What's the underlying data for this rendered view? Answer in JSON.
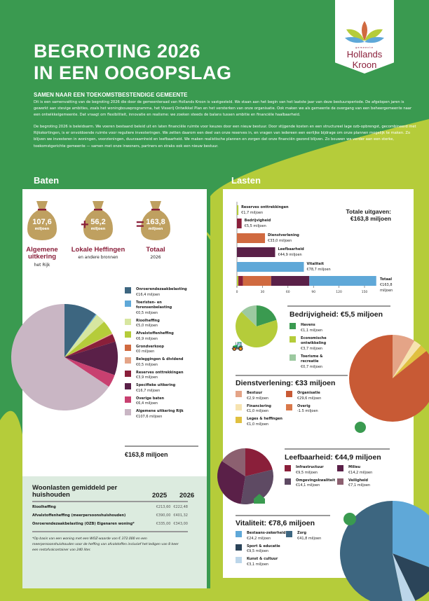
{
  "logo": {
    "small": "gemeente",
    "line1": "Hollands",
    "line2": "Kroon"
  },
  "title": [
    "BEGROTING 2026",
    "IN EEN OOGOPSLAG"
  ],
  "intro": {
    "heading": "SAMEN NAAR EEN TOEKOMSTBESTENDIGE GEMEENTE",
    "p1": "Dit is een samenvatting van de begroting 2026 die door de gemeenteraad van Hollands Kroon is vastgesteld. We staan aan het begin van het laatste jaar van deze bestuursperiode. De afgelopen jaren is gewerkt aan stevige ambities, zoals het woningbouwprogramma, het Visserij Ontwikkel Plan en het versterken van onze organisatie. Ook maken we als gemeente de overgang van een beheergemeente naar een ontwikkelgemeente. Dat vraagt om flexibiliteit, innovatie en realisme: we zoeken steeds de balans tussen ambitie en financiële haalbaarheid.",
    "p2": "De begroting 2026 is beleidsarm. We voeren bestaand beleid uit en laten financiële ruimte voor keuzes door een nieuw bestuur. Door stijgende kosten en een structureel lage ozb-opbrengst, gecombineerd met Rijkskortingen, is er onvoldoende ruimte voor reguliere investeringen. We zetten daarom een deel van onze reserves in, en vragen van iedereen een eerlijke bijdrage om onze plannen mogelijk te maken. Zo blijven we investeren in woningen, voorzieningen, duurzaamheid en leefbaarheid. We maken realistische plannen en zorgen dat onze financiën gezond blijven. Zo bouwen we verder aan een sterke, toekomstgerichte gemeente — samen met onze inwoners, partners en straks ook een nieuw bestuur."
  },
  "baten": {
    "heading": "Baten",
    "bags": [
      {
        "value": "107,6",
        "unit": "miljoen",
        "label": "Algemene uitkering",
        "sub": "het Rijk"
      },
      {
        "value": "56,2",
        "unit": "miljoen",
        "label": "Lokale Heffingen",
        "sub": "en andere bronnen"
      },
      {
        "value": "163,8",
        "unit": "miljoen",
        "label": "Totaal",
        "sub": "2026"
      }
    ],
    "plus": "+",
    "equals": "=",
    "total": "€163,8 miljoen"
  },
  "lasten": {
    "heading": "Lasten",
    "total_label": "Totale uitgaven:",
    "total_value": "€163,8 miljoen"
  },
  "woonlasten": {
    "title": "Woonlasten gemiddeld per huishouden",
    "years": [
      "2025",
      "2026"
    ],
    "rows": [
      [
        "Rioolheffing",
        "€213,60",
        "€222,48"
      ],
      [
        "Afvalstoffenheffing (meerpersoonshuishouden)",
        "€390,00",
        "€401,32"
      ],
      [
        "Onroerendezaakbelasting (OZB) Eigenaren woning*",
        "€335,00",
        "€343,00"
      ]
    ],
    "note": "*Op basis van een woning met een WOZ-waarde van € 372.000 en een meerpersoonshuishouden voor de heffing van afvalstoffen inclusief het ledigen van 8 keer een restafvalcontainer van 240 liter."
  },
  "chart_data": [
    {
      "type": "pie",
      "id": "baten",
      "slices": [
        {
          "label": "Onroerendezaakbelasting",
          "text": "€16,4 miljoen",
          "value": 16.4,
          "color": "#3d6680"
        },
        {
          "label": "Toeristen- en forensenbelasting",
          "text": "€0,5 miljoen",
          "value": 0.5,
          "color": "#5fa8d8"
        },
        {
          "label": "Rioolheffing",
          "text": "€5,0 miljoen",
          "value": 5.0,
          "color": "#d7e6a0"
        },
        {
          "label": "Afvalstoffenheffing",
          "text": "€6,9 miljoen",
          "value": 6.9,
          "color": "#b5cc3a"
        },
        {
          "label": "Grondverkoop",
          "text": "€0 miljoen",
          "value": 0,
          "color": "#d06a40"
        },
        {
          "label": "Beleggingen & dividend",
          "text": "€0,5 miljoen",
          "value": 0.5,
          "color": "#e4a487"
        },
        {
          "label": "Reserves onttrekkingen",
          "text": "€3,9 miljoen",
          "value": 3.9,
          "color": "#8a1f3a"
        },
        {
          "label": "Specifieke uitkering",
          "text": "€16,7 miljoen",
          "value": 16.7,
          "color": "#5a2048"
        },
        {
          "label": "Overige baten",
          "text": "€6,4 miljoen",
          "value": 6.4,
          "color": "#c84070"
        },
        {
          "label": "Algemene uitkering Rijk",
          "text": "€107,6 miljoen",
          "value": 107.6,
          "color": "#c9b6c4"
        }
      ]
    },
    {
      "type": "bar",
      "id": "lasten",
      "xlim": [
        0,
        165
      ],
      "xticks": [
        0,
        30,
        60,
        90,
        120,
        150
      ],
      "bars": [
        {
          "label": "Reserves onttrekkingen",
          "text": "€1,7 miljoen",
          "value": 1.7,
          "color": "#b5cc3a"
        },
        {
          "label": "Bedrijvigheid",
          "text": "€5,5 miljoen",
          "value": 5.5,
          "color": "#8a1f3a"
        },
        {
          "label": "Dienstverlening",
          "text": "€33,0 miljoen",
          "value": 33.0,
          "color": "#d06a40"
        },
        {
          "label": "Leefbaarheid",
          "text": "€44,9 miljoen",
          "value": 44.9,
          "color": "#5a2048"
        },
        {
          "label": "Vitaliteit",
          "text": "€78,7 miljoen",
          "value": 78.7,
          "color": "#5fa8d8"
        }
      ],
      "total": {
        "label": "Totaal",
        "text": "€163,8",
        "unit": "miljoen",
        "value": 163.8
      }
    },
    {
      "type": "pie",
      "id": "bedrijvigheid",
      "title": "Bedrijvigheid: €5,5 miljoen",
      "slices": [
        {
          "label": "Havens",
          "text": "€1,1 miljoen",
          "value": 1.1,
          "color": "#3a9a50"
        },
        {
          "label": "Economische ontwikkeling",
          "text": "€3,7 miljoen",
          "value": 3.7,
          "color": "#b5cc3a"
        },
        {
          "label": "Toerisme & recreatie",
          "text": "€0,7 miljoen",
          "value": 0.7,
          "color": "#9cc9a0"
        }
      ]
    },
    {
      "type": "pie",
      "id": "dienstverlening",
      "title": "Dienstverlening: €33 miljoen",
      "slices": [
        {
          "label": "Bestuur",
          "text": "€2,9 miljoen",
          "value": 2.9,
          "color": "#e4a487"
        },
        {
          "label": "Financiering",
          "text": "€1,0 miljoen",
          "value": 1.0,
          "color": "#f6e3b0"
        },
        {
          "label": "Leges & heffingen",
          "text": "€1,0 miljoen",
          "value": 1.0,
          "color": "#e0c040"
        },
        {
          "label": "Organisatie",
          "text": "€29,6 miljoen",
          "value": 29.6,
          "color": "#c85a35"
        },
        {
          "label": "Overig",
          "text": "-1.5 miljoen",
          "value": -1.5,
          "color": "#d9784a"
        }
      ]
    },
    {
      "type": "pie",
      "id": "leefbaarheid",
      "title": "Leefbaarheid: €44,9 miljoen",
      "slices": [
        {
          "label": "Infrastructuur",
          "text": "€9,5 miljoen",
          "value": 9.5,
          "color": "#8a1f3a"
        },
        {
          "label": "Omgevingskwaliteit",
          "text": "€14,1 miljoen",
          "value": 14.1,
          "color": "#5e4a63"
        },
        {
          "label": "Milieu",
          "text": "€14,2 miljoen",
          "value": 14.2,
          "color": "#5a2048"
        },
        {
          "label": "Veiligheid",
          "text": "€7,1 miljoen",
          "value": 7.1,
          "color": "#8c6070"
        }
      ]
    },
    {
      "type": "pie",
      "id": "vitaliteit",
      "title": "Vitaliteit: €78,6 miljoen",
      "slices": [
        {
          "label": "Bestaans-zekerheid",
          "text": "€24,2 miljoen",
          "value": 24.2,
          "color": "#5fa8d8"
        },
        {
          "label": "Sport & educatie",
          "text": "€9,5 miljoen",
          "value": 9.5,
          "color": "#2b4459"
        },
        {
          "label": "Kunst & cultuur",
          "text": "€3,1 miljoen",
          "value": 3.1,
          "color": "#bcd6ea"
        },
        {
          "label": "Zorg",
          "text": "€41,8 miljoen",
          "value": 41.8,
          "color": "#3d6680"
        }
      ]
    }
  ]
}
